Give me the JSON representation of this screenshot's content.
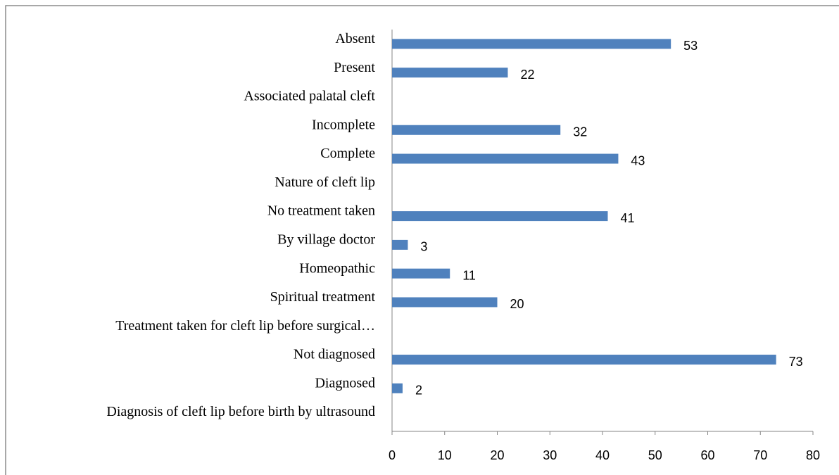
{
  "chart_data": {
    "type": "bar",
    "orientation": "horizontal",
    "categories": [
      "Absent",
      "Present",
      "Associated palatal cleft",
      "Incomplete",
      "Complete",
      "Nature of cleft lip",
      "No treatment taken",
      "By village doctor",
      "Homeopathic",
      "Spiritual treatment",
      "Treatment taken for cleft lip before surgical…",
      "Not diagnosed",
      "Diagnosed",
      "Diagnosis of cleft lip before birth by ultrasound"
    ],
    "values": [
      53,
      22,
      null,
      32,
      43,
      null,
      41,
      3,
      11,
      20,
      null,
      73,
      2,
      null
    ],
    "color": "#4f81bd",
    "xlim": [
      0,
      80
    ],
    "xticks": [
      0,
      10,
      20,
      30,
      40,
      50,
      60,
      70,
      80
    ],
    "grid": false
  }
}
